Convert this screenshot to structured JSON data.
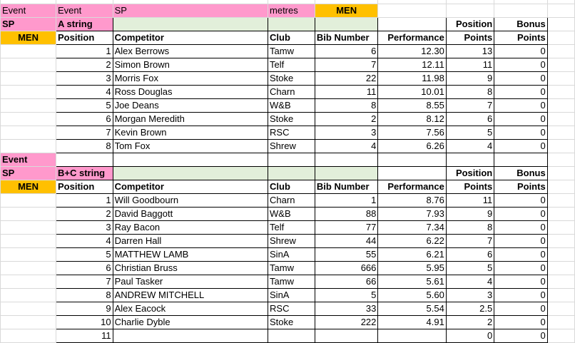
{
  "top": {
    "event_a": "Event",
    "event_b": "Event",
    "event_c": "SP",
    "unit": "metres",
    "gender": "MEN"
  },
  "colors": {
    "pink": "#ff99cc",
    "orange": "#ffc000",
    "green": "#e2efda"
  },
  "headers": {
    "position": "Position",
    "competitor": "Competitor",
    "club": "Club",
    "bib": "Bib Number",
    "performance": "Performance",
    "pos_points_1": "Position",
    "pos_points_2": "Points",
    "bonus_1": "Bonus",
    "bonus_2": "Points"
  },
  "sections": [
    {
      "event_label": "",
      "event_code": "SP",
      "gender": "MEN",
      "string": "A string",
      "rows": [
        [
          "1",
          "Alex Berrows",
          "Tamw",
          "6",
          "12.30",
          "13",
          "0"
        ],
        [
          "2",
          "Simon Brown",
          "Telf",
          "7",
          "12.11",
          "11",
          "0"
        ],
        [
          "3",
          "Morris Fox",
          "Stoke",
          "22",
          "11.98",
          "9",
          "0"
        ],
        [
          "4",
          "Ross Douglas",
          "Charn",
          "11",
          "10.01",
          "8",
          "0"
        ],
        [
          "5",
          "Joe Deans",
          "W&B",
          "8",
          "8.55",
          "7",
          "0"
        ],
        [
          "6",
          "Morgan Meredith",
          "Stoke",
          "2",
          "8.12",
          "6",
          "0"
        ],
        [
          "7",
          "Kevin Brown",
          "RSC",
          "3",
          "7.56",
          "5",
          "0"
        ],
        [
          "8",
          "Tom Fox",
          "Shrew",
          "4",
          "6.26",
          "4",
          "0"
        ]
      ]
    },
    {
      "event_label": "Event",
      "event_code": "SP",
      "gender": "MEN",
      "string": "B+C string",
      "rows": [
        [
          "1",
          "Will Goodbourn",
          "Charn",
          "1",
          "8.76",
          "11",
          "0"
        ],
        [
          "2",
          "David Baggott",
          "W&B",
          "88",
          "7.93",
          "9",
          "0"
        ],
        [
          "3",
          "Ray Bacon",
          "Telf",
          "77",
          "7.34",
          "8",
          "0"
        ],
        [
          "4",
          "Darren Hall",
          "Shrew",
          "44",
          "6.22",
          "7",
          "0"
        ],
        [
          "5",
          "MATTHEW LAMB",
          "SinA",
          "55",
          "6.21",
          "6",
          "0"
        ],
        [
          "6",
          "Christian Bruss",
          "Tamw",
          "666",
          "5.95",
          "5",
          "0"
        ],
        [
          "7",
          "Paul Tasker",
          "Tamw",
          "66",
          "5.61",
          "4",
          "0"
        ],
        [
          "8",
          "ANDREW MITCHELL",
          "SinA",
          "5",
          "5.60",
          "3",
          "0"
        ],
        [
          "9",
          "Alex Eacock",
          "RSC",
          "33",
          "5.54",
          "2.5",
          "0"
        ],
        [
          "10",
          "Charlie Dyble",
          "Stoke",
          "222",
          "4.91",
          "2",
          "0"
        ],
        [
          "11",
          "",
          "",
          "",
          "",
          "0",
          "0"
        ]
      ]
    }
  ]
}
